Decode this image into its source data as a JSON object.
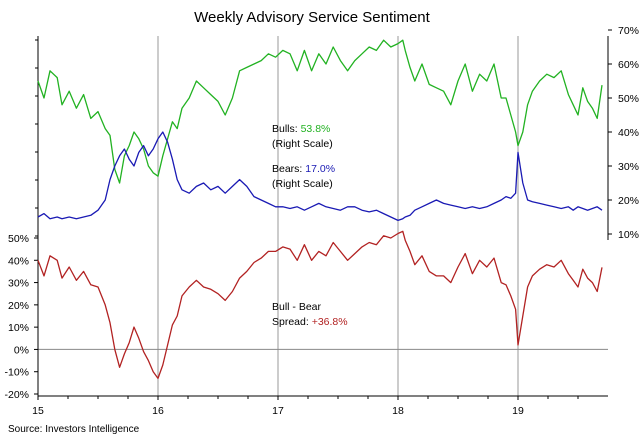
{
  "colors": {
    "bulls": "#22b222",
    "bears": "#1a1ab4",
    "spread": "#b22222",
    "gridline": "#999999",
    "zero_line": "#888888",
    "text": "#000000"
  },
  "chart_data": [
    {
      "type": "line",
      "title": "Weekly Advisory Service Sentiment",
      "axis": "right",
      "ylim": [
        0,
        70
      ],
      "yticks": [
        10,
        20,
        30,
        40,
        50,
        60,
        70
      ],
      "yticklabels": [
        "10%",
        "20%",
        "30%",
        "40%",
        "50%",
        "60%",
        "70%"
      ],
      "xlim": [
        2015,
        2019.75
      ],
      "series": [
        {
          "name": "Bulls",
          "color": "#22b222",
          "x": [
            2015,
            2015.05,
            2015.1,
            2015.16,
            2015.2,
            2015.26,
            2015.32,
            2015.38,
            2015.44,
            2015.5,
            2015.56,
            2015.6,
            2015.64,
            2015.68,
            2015.72,
            2015.76,
            2015.8,
            2015.84,
            2015.88,
            2015.92,
            2015.96,
            2016.0,
            2016.04,
            2016.08,
            2016.12,
            2016.16,
            2016.2,
            2016.26,
            2016.32,
            2016.38,
            2016.44,
            2016.5,
            2016.56,
            2016.62,
            2016.68,
            2016.74,
            2016.8,
            2016.86,
            2016.92,
            2016.98,
            2017.04,
            2017.1,
            2017.16,
            2017.22,
            2017.28,
            2017.34,
            2017.4,
            2017.46,
            2017.52,
            2017.58,
            2017.64,
            2017.7,
            2017.76,
            2017.82,
            2017.88,
            2017.94,
            2018.0,
            2018.04,
            2018.06,
            2018.1,
            2018.14,
            2018.2,
            2018.26,
            2018.32,
            2018.38,
            2018.44,
            2018.5,
            2018.56,
            2018.62,
            2018.68,
            2018.74,
            2018.8,
            2018.86,
            2018.9,
            2018.94,
            2018.98,
            2019.0,
            2019.04,
            2019.08,
            2019.12,
            2019.18,
            2019.24,
            2019.3,
            2019.36,
            2019.42,
            2019.46,
            2019.5,
            2019.54,
            2019.58,
            2019.62,
            2019.66,
            2019.7
          ],
          "values": [
            55,
            50,
            58,
            56,
            48,
            52,
            47,
            51,
            44,
            46,
            41,
            39,
            29,
            25,
            33,
            36,
            40,
            38,
            35,
            30,
            28,
            27,
            33,
            38,
            43,
            41,
            47,
            50,
            55,
            53,
            51,
            49,
            45,
            50,
            58,
            59,
            60,
            61,
            63,
            62,
            64,
            63,
            58,
            64,
            58,
            63,
            60,
            65,
            61,
            58,
            61,
            63,
            65,
            64,
            67,
            65,
            66,
            67,
            64,
            59,
            55,
            60,
            54,
            53,
            52,
            48,
            55,
            60,
            52,
            57,
            55,
            60,
            50,
            50,
            45,
            40,
            36,
            40,
            48,
            52,
            55,
            57,
            56,
            58,
            51,
            48,
            45,
            53,
            49,
            47,
            44,
            53.8
          ]
        },
        {
          "name": "Bears",
          "color": "#1a1ab4",
          "x": [
            2015,
            2015.05,
            2015.1,
            2015.16,
            2015.2,
            2015.26,
            2015.32,
            2015.38,
            2015.44,
            2015.5,
            2015.56,
            2015.6,
            2015.64,
            2015.68,
            2015.72,
            2015.76,
            2015.8,
            2015.84,
            2015.88,
            2015.92,
            2015.96,
            2016.0,
            2016.04,
            2016.08,
            2016.12,
            2016.16,
            2016.2,
            2016.26,
            2016.32,
            2016.38,
            2016.44,
            2016.5,
            2016.56,
            2016.62,
            2016.68,
            2016.74,
            2016.8,
            2016.86,
            2016.92,
            2016.98,
            2017.04,
            2017.1,
            2017.16,
            2017.22,
            2017.28,
            2017.34,
            2017.4,
            2017.46,
            2017.52,
            2017.58,
            2017.64,
            2017.7,
            2017.76,
            2017.82,
            2017.88,
            2017.94,
            2018.0,
            2018.04,
            2018.06,
            2018.1,
            2018.14,
            2018.2,
            2018.26,
            2018.32,
            2018.38,
            2018.44,
            2018.5,
            2018.56,
            2018.62,
            2018.68,
            2018.74,
            2018.8,
            2018.86,
            2018.9,
            2018.94,
            2018.98,
            2019.0,
            2019.04,
            2019.08,
            2019.12,
            2019.18,
            2019.24,
            2019.3,
            2019.36,
            2019.42,
            2019.46,
            2019.5,
            2019.54,
            2019.58,
            2019.62,
            2019.66,
            2019.7
          ],
          "values": [
            15,
            16,
            14.5,
            15,
            14.5,
            15,
            14.5,
            15,
            15.5,
            17,
            20,
            26,
            30,
            33,
            35,
            32,
            30,
            34,
            36,
            33,
            35,
            38,
            40,
            37,
            32,
            26,
            23,
            22,
            24,
            25,
            23,
            24,
            22,
            24,
            26,
            24,
            21,
            20,
            19,
            18,
            18,
            17.5,
            18,
            17,
            18,
            19,
            18,
            17.5,
            17,
            18,
            18,
            17,
            16.5,
            17,
            16,
            15,
            14,
            14.5,
            15,
            15.5,
            17,
            18,
            19,
            20,
            19,
            18.5,
            18,
            17.5,
            18,
            17.5,
            18,
            19,
            20,
            21,
            20.5,
            22,
            34,
            25,
            20,
            19.5,
            19,
            18.5,
            18,
            17.5,
            18,
            17,
            18,
            17.5,
            17,
            17.5,
            18,
            17.0
          ]
        }
      ],
      "annotations": [
        {
          "id": "bulls_note",
          "lines": [
            {
              "text": "Bulls: ",
              "value": "53.8%"
            },
            {
              "text": "(Right Scale)",
              "value": ""
            }
          ]
        },
        {
          "id": "bears_note",
          "lines": [
            {
              "text": "Bears: ",
              "value": "17.0%"
            },
            {
              "text": "(Right Scale)",
              "value": ""
            }
          ]
        }
      ]
    },
    {
      "type": "line",
      "axis": "left",
      "ylim": [
        -20,
        50
      ],
      "yticks": [
        -20,
        -10,
        0,
        10,
        20,
        30,
        40,
        50
      ],
      "yticklabels": [
        "-20%",
        "-10%",
        "0%",
        "10%",
        "20%",
        "30%",
        "40%",
        "50%"
      ],
      "xlim": [
        2015,
        2019.75
      ],
      "xticks": [
        2015,
        2016,
        2017,
        2018,
        2019
      ],
      "xticklabels": [
        "15",
        "16",
        "17",
        "18",
        "19"
      ],
      "series": [
        {
          "name": "Bull - Bear Spread",
          "color": "#b22222",
          "x": [
            2015,
            2015.05,
            2015.1,
            2015.16,
            2015.2,
            2015.26,
            2015.32,
            2015.38,
            2015.44,
            2015.5,
            2015.56,
            2015.6,
            2015.64,
            2015.68,
            2015.72,
            2015.76,
            2015.8,
            2015.84,
            2015.88,
            2015.92,
            2015.96,
            2016.0,
            2016.04,
            2016.08,
            2016.12,
            2016.16,
            2016.2,
            2016.26,
            2016.32,
            2016.38,
            2016.44,
            2016.5,
            2016.56,
            2016.62,
            2016.68,
            2016.74,
            2016.8,
            2016.86,
            2016.92,
            2016.98,
            2017.04,
            2017.1,
            2017.16,
            2017.22,
            2017.28,
            2017.34,
            2017.4,
            2017.46,
            2017.52,
            2017.58,
            2017.64,
            2017.7,
            2017.76,
            2017.82,
            2017.88,
            2017.94,
            2018.0,
            2018.04,
            2018.06,
            2018.1,
            2018.14,
            2018.2,
            2018.26,
            2018.32,
            2018.38,
            2018.44,
            2018.5,
            2018.56,
            2018.62,
            2018.68,
            2018.74,
            2018.8,
            2018.86,
            2018.9,
            2018.94,
            2018.98,
            2019.0,
            2019.04,
            2019.08,
            2019.12,
            2019.18,
            2019.24,
            2019.3,
            2019.36,
            2019.42,
            2019.46,
            2019.5,
            2019.54,
            2019.58,
            2019.62,
            2019.66,
            2019.7
          ],
          "values": [
            40,
            33,
            42,
            40,
            32,
            37,
            31,
            35,
            29,
            28,
            20,
            12,
            0,
            -8,
            -2,
            3,
            10,
            5,
            -1,
            -5,
            -10,
            -13,
            -7,
            2,
            11,
            15,
            24,
            28,
            31,
            28,
            27,
            25,
            22,
            26,
            32,
            35,
            39,
            41,
            44,
            44,
            46,
            45,
            40,
            47,
            40,
            44,
            42,
            48,
            44,
            40,
            43,
            46,
            48,
            47,
            51,
            50,
            52,
            53,
            49,
            44,
            38,
            42,
            35,
            33,
            33,
            30,
            37,
            43,
            34,
            40,
            37,
            41,
            30,
            29,
            24,
            18,
            2,
            15,
            28,
            33,
            36,
            38,
            37,
            40,
            34,
            31,
            28,
            36,
            32,
            30,
            26,
            36.8
          ]
        }
      ],
      "annotations": [
        {
          "id": "spread_note",
          "lines": [
            {
              "text": "Bull - Bear",
              "value": ""
            },
            {
              "text": "Spread: ",
              "value": "+36.8%"
            }
          ]
        }
      ]
    }
  ],
  "source_text": "Source:  Investors  Intelligence"
}
